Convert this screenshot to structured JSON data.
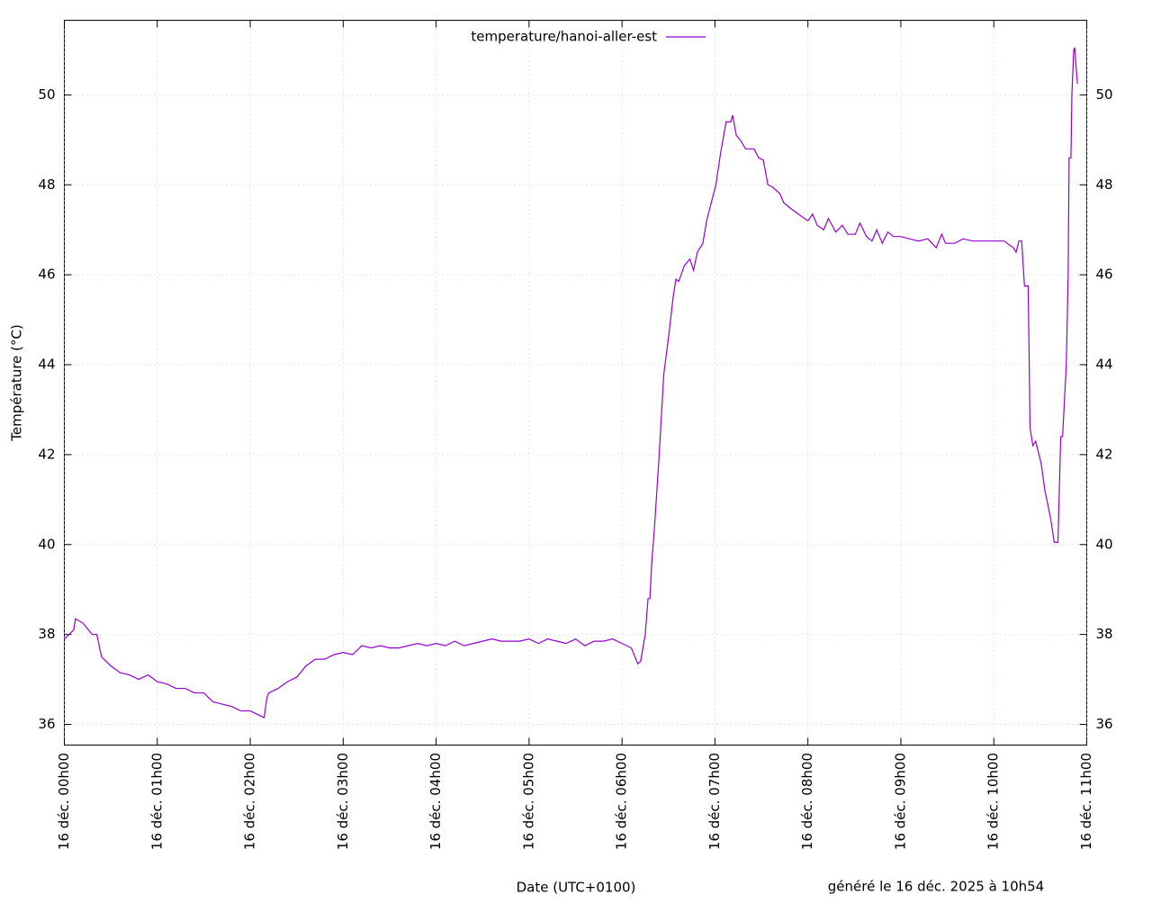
{
  "chart_data": {
    "type": "line",
    "y_label": "Température (°C)",
    "x_label": "Date (UTC+0100)",
    "footer": "généré le 16 déc. 2025 à 10h54",
    "grid": true,
    "legend_position": "top",
    "xlim": [
      0,
      11
    ],
    "xticks": [
      {
        "value": 0,
        "label": "16 déc. 00h00"
      },
      {
        "value": 1,
        "label": "16 déc. 01h00"
      },
      {
        "value": 2,
        "label": "16 déc. 02h00"
      },
      {
        "value": 3,
        "label": "16 déc. 03h00"
      },
      {
        "value": 4,
        "label": "16 déc. 04h00"
      },
      {
        "value": 5,
        "label": "16 déc. 05h00"
      },
      {
        "value": 6,
        "label": "16 déc. 06h00"
      },
      {
        "value": 7,
        "label": "16 déc. 07h00"
      },
      {
        "value": 8,
        "label": "16 déc. 08h00"
      },
      {
        "value": 9,
        "label": "16 déc. 09h00"
      },
      {
        "value": 10,
        "label": "16 déc. 10h00"
      },
      {
        "value": 11,
        "label": "16 déc. 11h00"
      }
    ],
    "ylim": [
      35.54,
      51.66
    ],
    "yticks": [
      36,
      38,
      40,
      42,
      44,
      46,
      48,
      50
    ],
    "x": [
      0,
      0.05,
      0.1,
      0.12,
      0.2,
      0.3,
      0.35,
      0.4,
      0.5,
      0.6,
      0.7,
      0.8,
      0.9,
      1.0,
      1.1,
      1.2,
      1.3,
      1.4,
      1.5,
      1.6,
      1.7,
      1.8,
      1.9,
      2.0,
      2.1,
      2.15,
      2.18,
      2.2,
      2.3,
      2.4,
      2.5,
      2.6,
      2.7,
      2.8,
      2.9,
      3.0,
      3.1,
      3.2,
      3.3,
      3.4,
      3.5,
      3.6,
      3.7,
      3.8,
      3.9,
      4.0,
      4.1,
      4.2,
      4.3,
      4.4,
      4.5,
      4.6,
      4.7,
      4.8,
      4.9,
      5.0,
      5.1,
      5.2,
      5.3,
      5.4,
      5.5,
      5.6,
      5.7,
      5.8,
      5.9,
      6.0,
      6.1,
      6.17,
      6.2,
      6.25,
      6.28,
      6.3,
      6.32,
      6.35,
      6.4,
      6.45,
      6.5,
      6.55,
      6.58,
      6.61,
      6.67,
      6.73,
      6.77,
      6.81,
      6.87,
      6.91,
      6.96,
      7.01,
      7.06,
      7.12,
      7.17,
      7.19,
      7.23,
      7.27,
      7.33,
      7.42,
      7.47,
      7.52,
      7.57,
      7.62,
      7.7,
      7.74,
      7.83,
      7.93,
      8.0,
      8.05,
      8.1,
      8.17,
      8.22,
      8.3,
      8.37,
      8.43,
      8.51,
      8.56,
      8.63,
      8.69,
      8.74,
      8.8,
      8.86,
      8.92,
      9.0,
      9.09,
      9.19,
      9.29,
      9.38,
      9.44,
      9.48,
      9.58,
      9.67,
      9.77,
      9.96,
      10.11,
      10.21,
      10.24,
      10.27,
      10.3,
      10.33,
      10.37,
      10.39,
      10.42,
      10.45,
      10.51,
      10.55,
      10.61,
      10.65,
      10.69,
      10.72,
      10.74,
      10.78,
      10.8,
      10.81,
      10.83,
      10.84,
      10.86,
      10.87,
      10.9
    ],
    "series": [
      {
        "name": "temperature/hanoi-aller-est",
        "color": "#9400d3",
        "values": [
          37.9,
          38.0,
          38.1,
          38.35,
          38.25,
          38.0,
          38.0,
          37.5,
          37.3,
          37.15,
          37.1,
          37.0,
          37.1,
          36.95,
          36.9,
          36.8,
          36.8,
          36.7,
          36.7,
          36.5,
          36.45,
          36.4,
          36.3,
          36.3,
          36.2,
          36.15,
          36.6,
          36.7,
          36.8,
          36.95,
          37.05,
          37.3,
          37.45,
          37.45,
          37.55,
          37.6,
          37.55,
          37.75,
          37.7,
          37.75,
          37.7,
          37.7,
          37.75,
          37.8,
          37.75,
          37.8,
          37.75,
          37.85,
          37.75,
          37.8,
          37.85,
          37.9,
          37.85,
          37.85,
          37.85,
          37.9,
          37.8,
          37.9,
          37.85,
          37.8,
          37.9,
          37.75,
          37.85,
          37.85,
          37.9,
          37.8,
          37.7,
          37.35,
          37.4,
          38.0,
          38.8,
          38.8,
          39.6,
          40.4,
          42.0,
          43.8,
          44.6,
          45.5,
          45.9,
          45.85,
          46.2,
          46.35,
          46.1,
          46.5,
          46.7,
          47.2,
          47.6,
          48.0,
          48.7,
          49.4,
          49.4,
          49.55,
          49.1,
          49.0,
          48.8,
          48.8,
          48.6,
          48.55,
          48.0,
          47.95,
          47.8,
          47.6,
          47.45,
          47.3,
          47.2,
          47.35,
          47.1,
          47.0,
          47.25,
          46.95,
          47.1,
          46.9,
          46.9,
          47.15,
          46.85,
          46.75,
          47.0,
          46.7,
          46.95,
          46.85,
          46.85,
          46.8,
          46.75,
          46.8,
          46.6,
          46.9,
          46.7,
          46.7,
          46.8,
          46.75,
          46.75,
          46.75,
          46.6,
          46.5,
          46.75,
          46.75,
          45.75,
          45.75,
          42.6,
          42.2,
          42.3,
          41.8,
          41.2,
          40.6,
          40.05,
          40.05,
          42.4,
          42.4,
          44.0,
          46.0,
          48.6,
          48.6,
          50.0,
          51.0,
          51.05,
          50.25
        ]
      }
    ]
  }
}
